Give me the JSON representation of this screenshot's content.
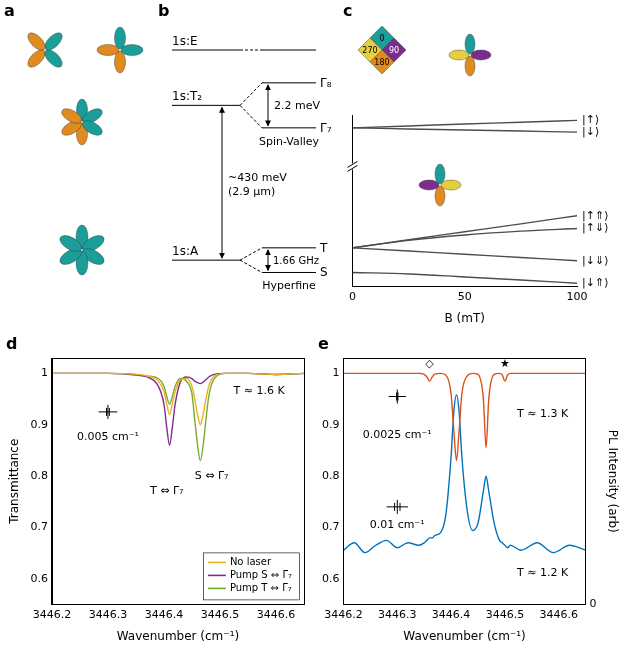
{
  "diagrams": {
    "a": {
      "letter": "a"
    },
    "b": {
      "letter": "b",
      "levels": {
        "E": "1s:E",
        "T2": "1s:T₂",
        "A": "1s:A",
        "Gamma8": "Γ₈",
        "Gamma7": "Γ₇",
        "T": "T",
        "S": "S"
      },
      "optical": {
        "energy": "~430 meV",
        "wavelength": "(2.9 μm)"
      },
      "spin_valley": {
        "energy": "2.2 meV",
        "label": "Spin-Valley"
      },
      "hyperfine": {
        "frequency": "1.66 GHz",
        "label": "Hyperfine"
      }
    }
  },
  "chart_data": [
    {
      "letter": "c",
      "type": "line",
      "xlabel": "B (mT)",
      "x": [
        0,
        25,
        50,
        75,
        100
      ],
      "xlim": [
        0,
        100
      ],
      "xticks": [
        0,
        50,
        100
      ],
      "ylim": [
        1.2,
        9.2
      ],
      "tick_labels": "x",
      "grid": false,
      "series": [
        {
          "name": "|↑⟩",
          "color": "#4d4d4d",
          "values": [
            8.6,
            8.69,
            8.78,
            8.86,
            8.95
          ]
        },
        {
          "name": "|↓⟩",
          "color": "#4d4d4d",
          "values": [
            8.6,
            8.55,
            8.5,
            8.45,
            8.4
          ]
        },
        {
          "name": "|↑⇑⟩",
          "color": "#4d4d4d",
          "values": [
            3.0,
            3.38,
            3.75,
            4.12,
            4.5
          ]
        },
        {
          "name": "|↑⇓⟩",
          "color": "#4d4d4d",
          "values": [
            3.0,
            3.35,
            3.6,
            3.78,
            3.9
          ]
        },
        {
          "name": "|↓⇓⟩",
          "color": "#4d4d4d",
          "values": [
            3.0,
            2.85,
            2.7,
            2.55,
            2.4
          ]
        },
        {
          "name": "|↓⇑⟩",
          "color": "#4d4d4d",
          "values": [
            1.85,
            1.78,
            1.64,
            1.5,
            1.35
          ]
        }
      ],
      "inset": {
        "labels": [
          "0",
          "90",
          "180",
          "270"
        ],
        "colors": [
          "#1b9e9a",
          "#7b2d8e",
          "#e08b1f",
          "#e5cf3c"
        ]
      }
    },
    {
      "letter": "d",
      "type": "line",
      "xlabel": "Wavenumber (cm⁻¹)",
      "ylabel": "Transmittance",
      "x": [
        3446.2,
        3446.25,
        3446.3,
        3446.35,
        3446.37,
        3446.39,
        3446.4,
        3446.405,
        3446.41,
        3446.415,
        3446.42,
        3446.43,
        3446.44,
        3446.45,
        3446.455,
        3446.46,
        3446.465,
        3446.47,
        3446.475,
        3446.48,
        3446.49,
        3446.51,
        3446.55,
        3446.6,
        3446.65
      ],
      "xlim": [
        3446.2,
        3446.65
      ],
      "xticks": [
        3446.2,
        3446.3,
        3446.4,
        3446.5,
        3446.6
      ],
      "ylim": [
        0.55,
        1.03
      ],
      "yticks": [
        0.6,
        0.7,
        0.8,
        0.9,
        1
      ],
      "grid": false,
      "legend": "lower right",
      "series": [
        {
          "name": "No laser",
          "color": "#EDB120",
          "values": [
            1,
            1,
            1,
            0.998,
            0.995,
            0.985,
            0.965,
            0.94,
            0.92,
            0.94,
            0.965,
            0.988,
            0.99,
            0.975,
            0.95,
            0.92,
            0.9,
            0.92,
            0.95,
            0.975,
            0.995,
            1,
            1,
            0.998,
            1
          ]
        },
        {
          "name": "Pump S ⇔ Γ₇",
          "color": "#7E2F8E",
          "values": [
            1,
            1,
            1,
            0.997,
            0.993,
            0.975,
            0.94,
            0.895,
            0.86,
            0.895,
            0.94,
            0.985,
            0.993,
            0.99,
            0.985,
            0.982,
            0.98,
            0.983,
            0.988,
            0.993,
            0.998,
            1,
            1,
            0.998,
            1
          ]
        },
        {
          "name": "Pump T ⇔ Γ₇",
          "color": "#77AC30",
          "values": [
            1,
            1,
            1,
            0.998,
            0.995,
            0.99,
            0.975,
            0.955,
            0.94,
            0.955,
            0.975,
            0.99,
            0.985,
            0.96,
            0.91,
            0.86,
            0.83,
            0.86,
            0.91,
            0.955,
            0.99,
            1,
            1,
            0.998,
            1
          ]
        }
      ],
      "annotations": [
        {
          "text": "T ⇔ Γ₇",
          "x": 3446.405,
          "y": 0.77
        },
        {
          "text": "S ⇔ Γ₇",
          "x": 3446.485,
          "y": 0.8
        },
        {
          "text": "T ≈ 1.6 K",
          "x": 3446.57,
          "y": 0.965
        },
        {
          "text": "0.005 cm⁻¹",
          "x": 3446.3,
          "y": 0.875
        }
      ],
      "resolution_markers": [
        {
          "x": 3446.3,
          "y": 0.925,
          "width": 0.005
        }
      ]
    },
    {
      "letter": "e",
      "type": "line",
      "xlabel": "Wavenumber (cm⁻¹)",
      "y2label": "PL Intensity (arb)",
      "x": [
        3446.2,
        3446.22,
        3446.24,
        3446.26,
        3446.28,
        3446.3,
        3446.32,
        3446.34,
        3446.35,
        3446.355,
        3446.36,
        3446.365,
        3446.37,
        3446.38,
        3446.39,
        3446.4,
        3446.405,
        3446.41,
        3446.415,
        3446.42,
        3446.43,
        3446.44,
        3446.45,
        3446.46,
        3446.465,
        3446.47,
        3446.48,
        3446.49,
        3446.495,
        3446.5,
        3446.505,
        3446.51,
        3446.53,
        3446.56,
        3446.59,
        3446.62,
        3446.65
      ],
      "xlim": [
        3446.2,
        3446.65
      ],
      "xticks": [
        3446.2,
        3446.3,
        3446.4,
        3446.5,
        3446.6
      ],
      "ylim": [
        0.55,
        1.03
      ],
      "yticks": [
        0.6,
        0.7,
        0.8,
        0.9,
        1
      ],
      "y2lim": [
        0,
        1
      ],
      "y2ticks": [
        0
      ],
      "grid": false,
      "series": [
        {
          "color": "#D95319",
          "values": [
            1,
            1,
            1,
            1,
            1,
            1,
            1,
            1,
            0.998,
            0.993,
            0.985,
            0.993,
            0.999,
            1,
            0.997,
            0.96,
            0.89,
            0.83,
            0.89,
            0.96,
            0.995,
            1,
            0.998,
            0.95,
            0.855,
            0.95,
            0.998,
            1,
            0.997,
            0.985,
            0.997,
            1,
            1,
            1,
            1,
            1,
            1
          ]
        },
        {
          "color": "#0072BD",
          "axis": "y2",
          "values": [
            0.22,
            0.25,
            0.21,
            0.24,
            0.26,
            0.23,
            0.25,
            0.24,
            0.25,
            0.26,
            0.27,
            0.27,
            0.28,
            0.29,
            0.36,
            0.6,
            0.78,
            0.85,
            0.78,
            0.6,
            0.38,
            0.3,
            0.33,
            0.46,
            0.52,
            0.46,
            0.33,
            0.26,
            0.25,
            0.24,
            0.23,
            0.24,
            0.22,
            0.25,
            0.21,
            0.24,
            0.22
          ]
        }
      ],
      "annotations": [
        {
          "text": "◇",
          "x": 3446.36,
          "y": 1.018
        },
        {
          "text": "★",
          "x": 3446.5,
          "y": 1.018
        },
        {
          "text": "T ≈ 1.3 K",
          "x": 3446.57,
          "y": 0.92
        },
        {
          "text": "0.0025 cm⁻¹",
          "x": 3446.3,
          "y": 0.88
        },
        {
          "text": "0.01 cm⁻¹",
          "x": 3446.3,
          "y": 0.705
        },
        {
          "text": "T ≈ 1.2 K",
          "x": 3446.57,
          "y": 0.61
        }
      ],
      "resolution_markers": [
        {
          "x": 3446.3,
          "y": 0.955,
          "width": 0.0025
        },
        {
          "x": 3446.3,
          "y": 0.74,
          "width": 0.01
        }
      ]
    }
  ]
}
